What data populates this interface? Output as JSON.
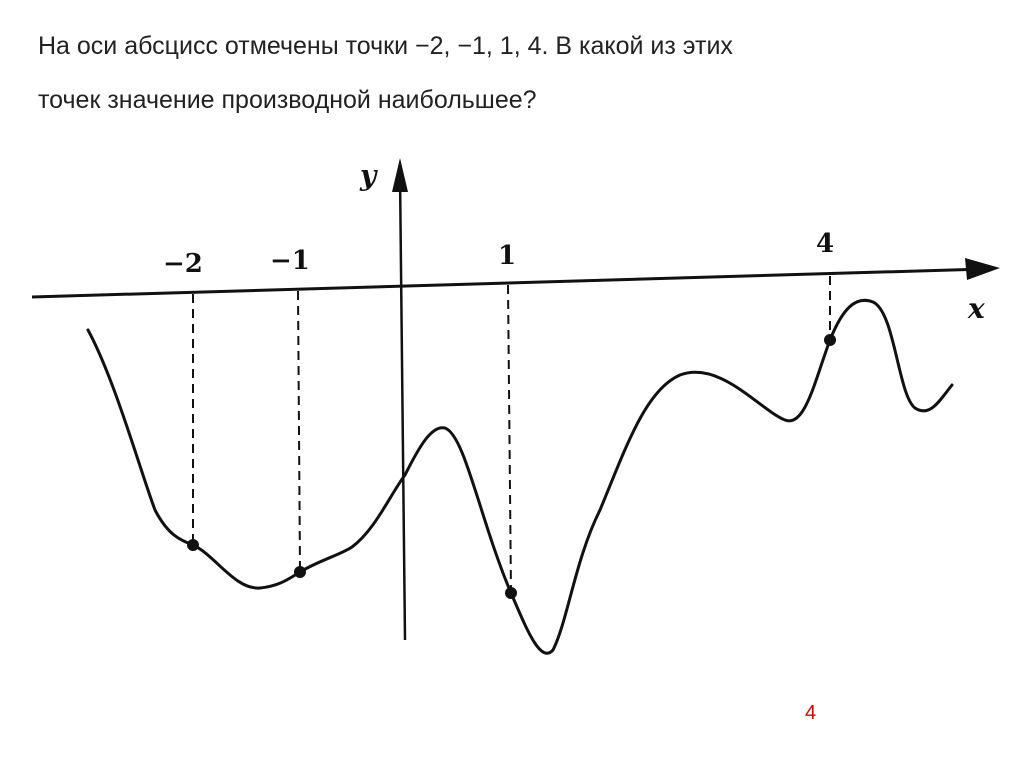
{
  "question": {
    "line1": "На оси абсцисс отмечены точки −2, −1, 1,   4. В какой из этих",
    "line2": "точек значение производной наибольшее?"
  },
  "page_number": "4",
  "chart_data": {
    "type": "line",
    "xlabel": "x",
    "ylabel": "y",
    "x_tick_labels": [
      "−2",
      "−1",
      "1",
      "4"
    ],
    "marked_points_x": [
      -2,
      -1,
      1,
      4
    ],
    "grid": false,
    "curve_color": "#111111",
    "accent_color": "#e00000"
  }
}
